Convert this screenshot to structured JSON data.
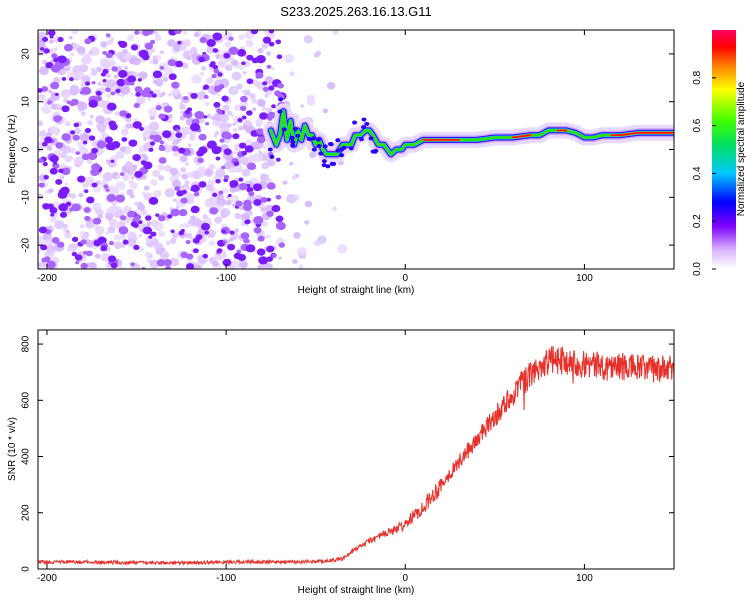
{
  "figure": {
    "title": "S233.2025.263.16.13.G11"
  },
  "chart_data": [
    {
      "type": "heatmap",
      "description_source": "radio occultation spectrogram",
      "xlabel": "Height of straight line (km)",
      "ylabel": "Frequency (Hz)",
      "xlim": [
        -205,
        150
      ],
      "ylim": [
        -25,
        25
      ],
      "xticks": [
        -200,
        -100,
        0,
        100
      ],
      "xtick_labels": [
        "-200",
        "-100",
        "0",
        "100"
      ],
      "yticks": [
        -20,
        -10,
        0,
        10,
        20
      ],
      "ytick_labels": [
        "-20",
        "-10",
        "0",
        "10",
        "20"
      ],
      "ridge_x": [
        -75,
        -72,
        -70,
        -68,
        -66,
        -64,
        -62,
        -60,
        -58,
        -56,
        -54,
        -52,
        -50,
        -48,
        -46,
        -44,
        -42,
        -40,
        -38,
        -35,
        -32,
        -30,
        -28,
        -25,
        -22,
        -20,
        -18,
        -15,
        -12,
        -10,
        -8,
        -5,
        -2,
        0,
        5,
        10,
        20,
        30,
        40,
        50,
        60,
        70,
        75,
        80,
        85,
        90,
        95,
        100,
        105,
        110,
        115,
        120,
        130,
        140,
        150
      ],
      "ridge_y": [
        4,
        1,
        3,
        8,
        2,
        6,
        1,
        4,
        2,
        5,
        3,
        3,
        1,
        2,
        0,
        -1,
        -1,
        -1,
        -1,
        1,
        1,
        1,
        3,
        3,
        4,
        4,
        3,
        1,
        1,
        0,
        -1,
        0,
        0,
        1,
        1,
        2,
        2,
        2,
        2,
        2.5,
        2.5,
        3,
        3,
        4,
        4,
        4,
        3.5,
        2.5,
        2.5,
        3,
        3,
        3,
        3.5,
        3.5,
        3.5
      ],
      "noise_region_x": [
        -205,
        -35
      ],
      "colorbar": {
        "label": "Normalized spectral amplitude",
        "ticks": [
          0.0,
          0.2,
          0.4,
          0.6,
          0.8
        ],
        "tick_labels": [
          "0.0",
          "0.2",
          "0.4",
          "0.6",
          "0.8"
        ],
        "range": [
          0,
          1
        ],
        "colors": [
          "#ffffff",
          "#d9b3ff",
          "#8000ff",
          "#0000ff",
          "#00c8ff",
          "#00e060",
          "#40ff00",
          "#ffff00",
          "#ff8000",
          "#ff0000",
          "#ff0060"
        ]
      }
    },
    {
      "type": "line",
      "xlabel": "Height of straight line (km)",
      "ylabel": "SNR (10 * v/v)",
      "xlim": [
        -205,
        150
      ],
      "ylim": [
        0,
        850
      ],
      "xticks": [
        -200,
        -100,
        0,
        100
      ],
      "xtick_labels": [
        "-200",
        "-100",
        "0",
        "100"
      ],
      "yticks": [
        0,
        200,
        400,
        600,
        800
      ],
      "ytick_labels": [
        "0",
        "200",
        "400",
        "600",
        "800"
      ],
      "series": [
        {
          "name": "SNR",
          "color": "#e8302a",
          "x": [
            -205,
            -180,
            -150,
            -120,
            -100,
            -80,
            -60,
            -45,
            -35,
            -30,
            -25,
            -20,
            -15,
            -10,
            -5,
            0,
            5,
            10,
            15,
            20,
            25,
            30,
            35,
            40,
            45,
            50,
            55,
            60,
            65,
            70,
            75,
            80,
            85,
            90,
            95,
            100,
            105,
            110,
            120,
            130,
            140,
            150
          ],
          "values": [
            25,
            25,
            22,
            22,
            25,
            25,
            25,
            28,
            35,
            60,
            80,
            100,
            115,
            130,
            140,
            160,
            190,
            220,
            260,
            300,
            340,
            380,
            420,
            460,
            500,
            540,
            580,
            620,
            660,
            690,
            720,
            740,
            745,
            740,
            735,
            730,
            725,
            720,
            720,
            715,
            710,
            710
          ]
        }
      ]
    }
  ]
}
